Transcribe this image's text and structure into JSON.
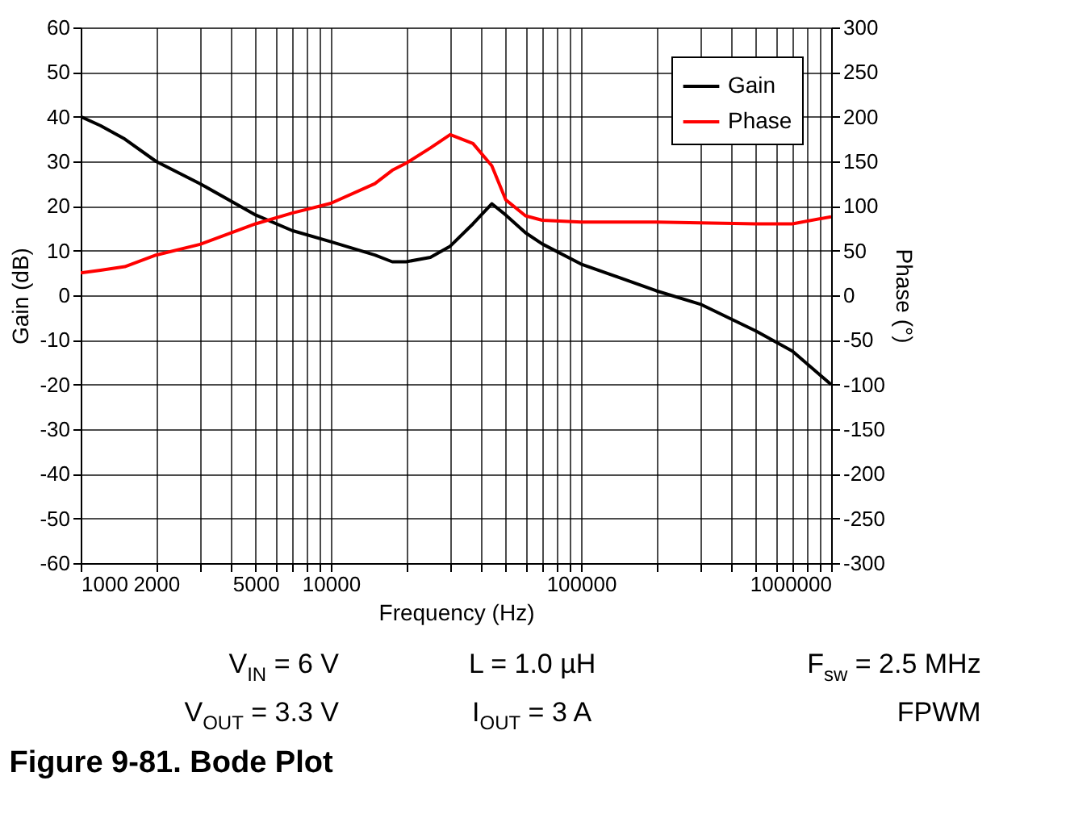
{
  "chart_data": {
    "type": "line",
    "title": "Figure 9-81. Bode Plot",
    "xlabel": "Frequency (Hz)",
    "ylabel": "Gain (dB)",
    "y2label": "Phase (°)",
    "x": [
      1000,
      1200,
      1500,
      2000,
      3000,
      5000,
      7000,
      10000,
      15000,
      17600,
      20000,
      25000,
      30000,
      37000,
      44000,
      50000,
      60000,
      70000,
      100000,
      200000,
      300000,
      500000,
      700000,
      1000000
    ],
    "series": [
      {
        "name": "Gain",
        "color": "#000000",
        "values": [
          40,
          38,
          35,
          30,
          25,
          18,
          14.5,
          12,
          9,
          7.5,
          7.5,
          8.5,
          11,
          16,
          20.5,
          18,
          14,
          11.5,
          7,
          1,
          -2,
          -8,
          -12.5,
          -20
        ]
      },
      {
        "name": "Phase",
        "color": "#ff0000",
        "axis": "y2",
        "values": [
          25,
          28,
          32,
          45,
          57,
          80,
          92,
          103,
          125,
          140,
          148,
          165,
          180,
          170,
          145,
          107,
          89,
          84,
          82,
          82,
          81,
          80,
          80,
          88
        ]
      }
    ],
    "log": "x",
    "xlim": [
      1000,
      1000000
    ],
    "xticks": [
      1000,
      2000,
      {
        "value": 3000,
        "label": null
      },
      {
        "value": 4000,
        "label": null
      },
      5000,
      {
        "value": 6000,
        "label": null
      },
      {
        "value": 7000,
        "label": null
      },
      {
        "value": 8000,
        "label": null
      },
      {
        "value": 9000,
        "label": null
      },
      10000,
      {
        "value": 20000,
        "label": null
      },
      {
        "value": 30000,
        "label": null
      },
      {
        "value": 40000,
        "label": null
      },
      {
        "value": 50000,
        "label": null
      },
      {
        "value": 60000,
        "label": null
      },
      {
        "value": 70000,
        "label": null
      },
      {
        "value": 80000,
        "label": null
      },
      {
        "value": 90000,
        "label": null
      },
      100000,
      {
        "value": 200000,
        "label": null
      },
      {
        "value": 300000,
        "label": null
      },
      {
        "value": 400000,
        "label": null
      },
      {
        "value": 500000,
        "label": null
      },
      {
        "value": 600000,
        "label": null
      },
      {
        "value": 700000,
        "label": null
      },
      {
        "value": 800000,
        "label": null
      },
      {
        "value": 900000,
        "label": null
      },
      1000000
    ],
    "ylim": [
      -60,
      60
    ],
    "yticks": [
      -60,
      -50,
      -40,
      -30,
      -20,
      -10,
      0,
      10,
      20,
      30,
      40,
      50,
      60
    ],
    "y2lim": [
      -300,
      300
    ],
    "y2ticks": [
      -300,
      -250,
      -200,
      -150,
      -100,
      -50,
      0,
      50,
      100,
      150,
      200,
      250,
      300
    ],
    "grid": true,
    "legend": "top right",
    "line_style": "solid",
    "marker": "none",
    "annotations": [
      "V$_{IN}$ = 6 V",
      "L = 1.0 µH",
      "F$_{sw}$ = 2.5 MHz",
      "V$_{OUT}$ = 3.3 V",
      "I$_{OUT}$ = 3 A",
      "FPWM"
    ]
  }
}
